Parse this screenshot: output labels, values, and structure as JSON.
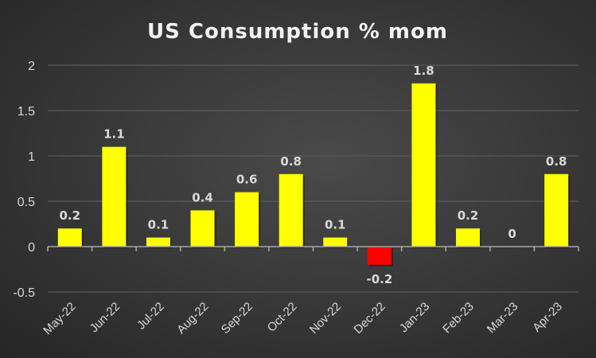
{
  "chart_data": {
    "type": "bar",
    "title": "US Consumption % mom",
    "xlabel": "",
    "ylabel": "",
    "categories": [
      "May-22",
      "Jun-22",
      "Jul-22",
      "Aug-22",
      "Sep-22",
      "Oct-22",
      "Nov-22",
      "Dec-22",
      "Jan-23",
      "Feb-23",
      "Mar-23",
      "Apr-23"
    ],
    "values": [
      0.2,
      1.1,
      0.1,
      0.4,
      0.6,
      0.8,
      0.1,
      -0.2,
      1.8,
      0.2,
      0,
      0.8
    ],
    "data_labels": [
      "0.2",
      "1.1",
      "0.1",
      "0.4",
      "0.6",
      "0.8",
      "0.1",
      "-0.2",
      "1.8",
      "0.2",
      "0",
      "0.8"
    ],
    "ylim": [
      -0.5,
      2
    ],
    "yticks": [
      -0.5,
      0,
      0.5,
      1,
      1.5,
      2
    ],
    "ytick_labels": [
      "-0.5",
      "0",
      "0.5",
      "1",
      "1.5",
      "2"
    ],
    "grid": true,
    "legend": "none",
    "colors": {
      "positive": "#ffff00",
      "negative": "#ff0000"
    }
  }
}
